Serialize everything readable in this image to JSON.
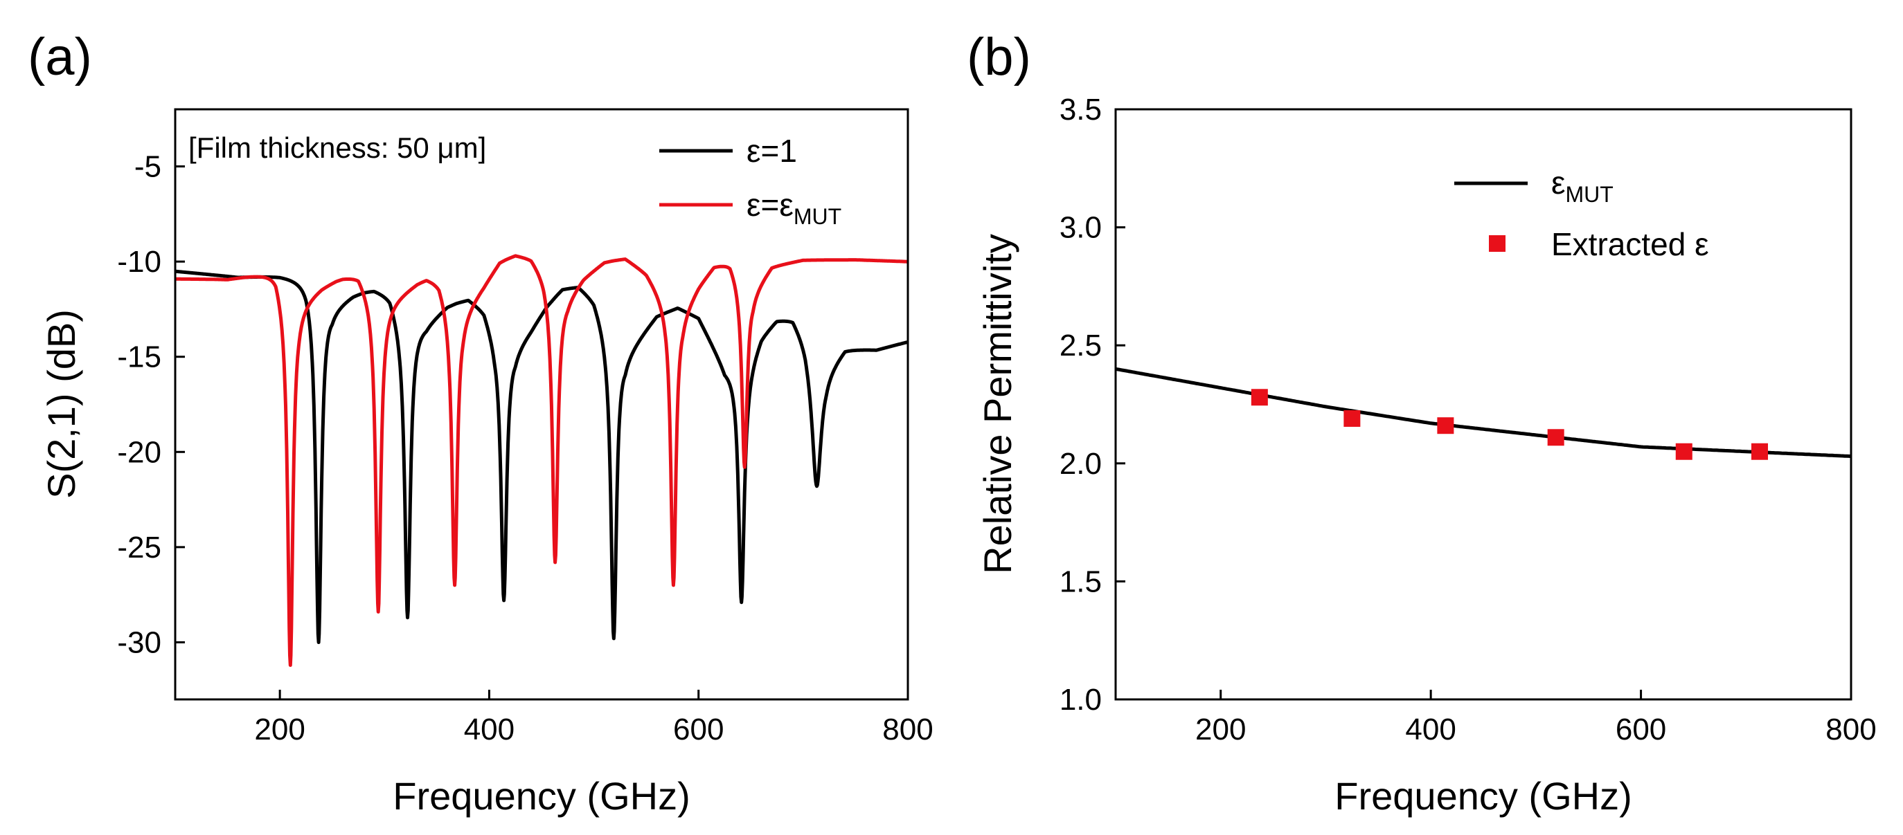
{
  "chart_data": [
    {
      "panel_label": "(a)",
      "type": "line",
      "xlabel": "Frequency (GHz)",
      "ylabel": "S(2,1) (dB)",
      "xlim": [
        100,
        800
      ],
      "ylim": [
        -33,
        -2
      ],
      "xticks": [
        200,
        400,
        600,
        800
      ],
      "yticks": [
        -5,
        -10,
        -15,
        -20,
        -25,
        -30
      ],
      "grid": false,
      "annotation": "[Film thickness: 50 μm]",
      "legend_position": "top-right",
      "series": [
        {
          "name": "ε=1",
          "name_main": "ε=1",
          "name_sub": "",
          "color": "#000000",
          "base": [
            [
              100,
              -10.5
            ],
            [
              160,
              -10.8
            ],
            [
              200,
              -10.7
            ],
            [
              225,
              -10.8
            ],
            [
              250,
              -12.3
            ],
            [
              270,
              -11.7
            ],
            [
              290,
              -11.4
            ],
            [
              305,
              -11.6
            ],
            [
              318,
              -13.2
            ],
            [
              340,
              -13.2
            ],
            [
              360,
              -12.3
            ],
            [
              380,
              -11.9
            ],
            [
              395,
              -12.4
            ],
            [
              405,
              -13.8
            ],
            [
              425,
              -14.5
            ],
            [
              440,
              -13.5
            ],
            [
              455,
              -12.3
            ],
            [
              470,
              -11.4
            ],
            [
              485,
              -11.2
            ],
            [
              500,
              -11.8
            ],
            [
              512,
              -13.4
            ],
            [
              530,
              -14.8
            ],
            [
              545,
              -13.8
            ],
            [
              560,
              -12.8
            ],
            [
              580,
              -12.4
            ],
            [
              600,
              -12.9
            ],
            [
              625,
              -15.5
            ],
            [
              645,
              -15.6
            ],
            [
              660,
              -13.8
            ],
            [
              675,
              -13.0
            ],
            [
              690,
              -12.8
            ],
            [
              702,
              -13.8
            ],
            [
              712,
              -15.5
            ],
            [
              722,
              -15.6
            ],
            [
              740,
              -14.5
            ],
            [
              770,
              -14.6
            ],
            [
              800,
              -14.2
            ]
          ],
          "dips": [
            [
              237,
              -30.0,
              3.2
            ],
            [
              322,
              -28.7,
              3.2
            ],
            [
              414,
              -27.8,
              3.2
            ],
            [
              519,
              -29.8,
              3.2
            ],
            [
              641,
              -27.9,
              3.2
            ],
            [
              713,
              -21.8,
              5.0
            ]
          ]
        },
        {
          "name": "ε=εMUT",
          "name_main": "ε=ε",
          "name_sub": "MUT",
          "color": "#e8101a",
          "base": [
            [
              100,
              -10.9
            ],
            [
              150,
              -10.9
            ],
            [
              180,
              -10.6
            ],
            [
              196,
              -10.4
            ],
            [
              205,
              -11.5
            ],
            [
              218,
              -12.1
            ],
            [
              240,
              -11.3
            ],
            [
              260,
              -10.8
            ],
            [
              275,
              -10.6
            ],
            [
              288,
              -11.6
            ],
            [
              300,
              -12.2
            ],
            [
              320,
              -11.5
            ],
            [
              340,
              -10.8
            ],
            [
              352,
              -10.9
            ],
            [
              362,
              -12.1
            ],
            [
              375,
              -12.6
            ],
            [
              395,
              -11.2
            ],
            [
              410,
              -10.0
            ],
            [
              425,
              -9.6
            ],
            [
              440,
              -9.7
            ],
            [
              452,
              -10.5
            ],
            [
              462,
              -11.8
            ],
            [
              475,
              -11.8
            ],
            [
              490,
              -10.8
            ],
            [
              510,
              -10.0
            ],
            [
              530,
              -9.8
            ],
            [
              550,
              -10.5
            ],
            [
              568,
              -11.9
            ],
            [
              585,
              -12.5
            ],
            [
              600,
              -11.2
            ],
            [
              615,
              -10.2
            ],
            [
              630,
              -9.9
            ],
            [
              640,
              -10.8
            ],
            [
              652,
              -11.5
            ],
            [
              670,
              -10.2
            ],
            [
              700,
              -9.9
            ],
            [
              750,
              -9.9
            ],
            [
              800,
              -10.0
            ]
          ],
          "dips": [
            [
              210,
              -31.2,
              3.0
            ],
            [
              294,
              -28.4,
              3.0
            ],
            [
              367,
              -27.0,
              3.0
            ],
            [
              463,
              -25.8,
              3.0
            ],
            [
              576,
              -27.0,
              3.0
            ],
            [
              644,
              -20.8,
              3.0
            ]
          ]
        }
      ]
    },
    {
      "panel_label": "(b)",
      "type": "line",
      "xlabel": "Frequency (GHz)",
      "ylabel": "Relative Permittivity",
      "xlim": [
        100,
        800
      ],
      "ylim": [
        1.0,
        3.5
      ],
      "xticks": [
        200,
        400,
        600,
        800
      ],
      "yticks": [
        1.0,
        1.5,
        2.0,
        2.5,
        3.0,
        3.5
      ],
      "ytick_labels": [
        "1.0",
        "1.5",
        "2.0",
        "2.5",
        "3.0",
        "3.5"
      ],
      "grid": false,
      "legend_position": "top-right",
      "series": [
        {
          "name": "εMUT",
          "name_main": "ε",
          "name_sub": "MUT",
          "type": "line",
          "color": "#000000",
          "points": [
            [
              100,
              2.4
            ],
            [
              200,
              2.32
            ],
            [
              300,
              2.24
            ],
            [
              400,
              2.17
            ],
            [
              500,
              2.12
            ],
            [
              600,
              2.07
            ],
            [
              700,
              2.05
            ],
            [
              800,
              2.03
            ]
          ]
        },
        {
          "name": "Extracted ε",
          "name_main": "Extracted ε",
          "name_sub": "",
          "type": "scatter",
          "color": "#e8101a",
          "points": [
            [
              237,
              2.28
            ],
            [
              325,
              2.19
            ],
            [
              414,
              2.16
            ],
            [
              519,
              2.11
            ],
            [
              641,
              2.05
            ],
            [
              713,
              2.05
            ]
          ]
        }
      ]
    }
  ]
}
